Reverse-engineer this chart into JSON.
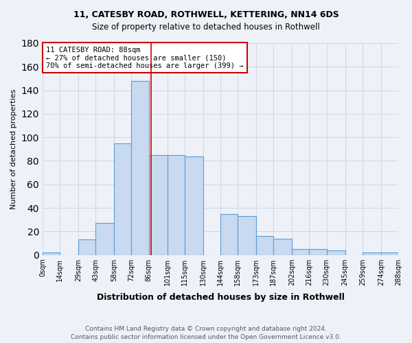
{
  "title1": "11, CATESBY ROAD, ROTHWELL, KETTERING, NN14 6DS",
  "title2": "Size of property relative to detached houses in Rothwell",
  "xlabel": "Distribution of detached houses by size in Rothwell",
  "ylabel": "Number of detached properties",
  "footer1": "Contains HM Land Registry data © Crown copyright and database right 2024.",
  "footer2": "Contains public sector information licensed under the Open Government Licence v3.0.",
  "property_size": 88,
  "pct_smaller": 27,
  "n_smaller": 150,
  "pct_larger": 70,
  "n_larger": 399,
  "bin_edges": [
    0,
    14,
    29,
    43,
    58,
    72,
    86,
    101,
    115,
    130,
    144,
    158,
    173,
    187,
    202,
    216,
    230,
    245,
    259,
    274,
    288
  ],
  "bin_labels": [
    "0sqm",
    "14sqm",
    "29sqm",
    "43sqm",
    "58sqm",
    "72sqm",
    "86sqm",
    "101sqm",
    "115sqm",
    "130sqm",
    "144sqm",
    "158sqm",
    "173sqm",
    "187sqm",
    "202sqm",
    "216sqm",
    "230sqm",
    "245sqm",
    "259sqm",
    "274sqm",
    "288sqm"
  ],
  "counts": [
    2,
    0,
    13,
    27,
    95,
    148,
    85,
    85,
    84,
    0,
    35,
    33,
    16,
    14,
    5,
    5,
    4,
    0,
    2,
    2
  ],
  "bar_color": "#c8d9f0",
  "bar_edge_color": "#5b9bd5",
  "grid_color": "#d0d8e8",
  "bg_color": "#eef2f8",
  "vline_color": "#cc0000",
  "annotation_box_color": "#cc0000",
  "ylim": [
    0,
    180
  ]
}
